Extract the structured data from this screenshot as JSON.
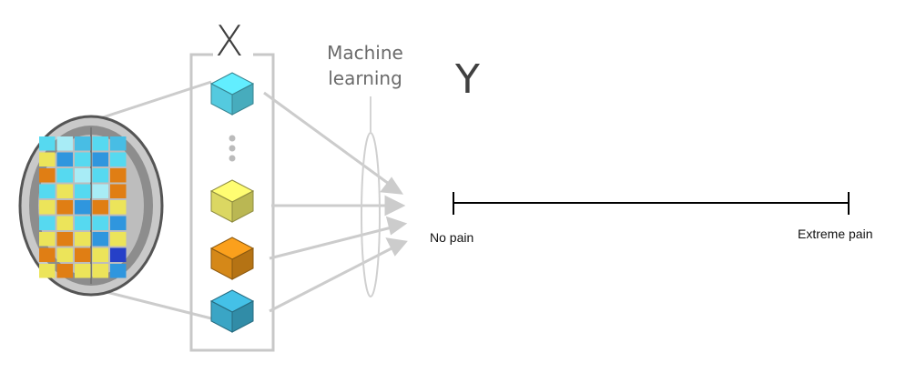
{
  "labels": {
    "x": "X",
    "y": "Y",
    "machine_learning": "Machine learning",
    "scale_min": "No pain",
    "scale_max": "Extreme pain"
  },
  "colors": {
    "cyan": "#5bdcf2",
    "yellow": "#eeea6a",
    "orange": "#e8941a",
    "blue": "#3fb3d6",
    "connector": "#cccccc",
    "scale_line": "#000000"
  },
  "feature_cubes": [
    "cyan",
    "yellow",
    "orange",
    "blue"
  ],
  "brain_grid": [
    [
      "cyan",
      "light-cyan",
      "light-blue",
      "cyan",
      "light-blue"
    ],
    [
      "yellow",
      "blue",
      "cyan",
      "blue",
      "cyan"
    ],
    [
      "orange",
      "cyan",
      "light-cyan",
      "cyan",
      "orange"
    ],
    [
      "cyan",
      "yellow",
      "cyan",
      "light-cyan",
      "orange"
    ],
    [
      "yellow",
      "orange",
      "blue",
      "orange",
      "yellow"
    ],
    [
      "cyan",
      "yellow",
      "cyan",
      "cyan",
      "blue"
    ],
    [
      "yellow",
      "orange",
      "yellow",
      "blue",
      "yellow"
    ],
    [
      "orange",
      "yellow",
      "orange",
      "yellow",
      "navy"
    ],
    [
      "yellow",
      "orange",
      "yellow",
      "yellow",
      "blue"
    ]
  ]
}
